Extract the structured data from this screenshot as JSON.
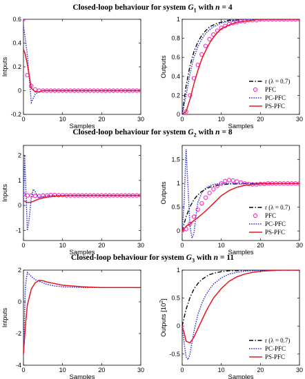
{
  "row_titles": [
    {
      "prefix": "Closed-loop behaviour for system ",
      "sys": "G",
      "sub": "1",
      "mid": " with ",
      "n": "n",
      "eq": " = 4"
    },
    {
      "prefix": "Closed-loop behaviour for system ",
      "sys": "G",
      "sub": "2",
      "mid": " with ",
      "n": "n",
      "eq": " = 8"
    },
    {
      "prefix": "Closed-loop behaviour for system ",
      "sys": "G",
      "sub": "3",
      "mid": " with ",
      "n": "n",
      "eq": " = 11"
    }
  ],
  "colors": {
    "r": "#000000",
    "PFC": "#ff33cc",
    "PC-PFC": "#2b2bd6",
    "PS-PFC": "#e8141e"
  },
  "chart_data": [
    {
      "type": "line",
      "id": "g1-inputs",
      "xlabel": "Samples",
      "ylabel": "Intputs",
      "xlim": [
        0,
        30
      ],
      "ylim": [
        -0.2,
        0.6
      ],
      "xticks": [
        0,
        10,
        20,
        30
      ],
      "yticks": [
        -0.2,
        0,
        0.2,
        0.4,
        0.6
      ],
      "series": [
        {
          "name": "PFC",
          "style": "markers",
          "x": [
            0,
            1,
            2,
            3,
            4,
            5,
            6,
            7,
            8,
            9,
            10,
            11,
            12,
            13,
            14,
            15,
            16,
            17,
            18,
            19,
            20,
            21,
            22,
            23,
            24,
            25,
            26,
            27,
            28,
            29,
            30
          ],
          "y": [
            0.6,
            0.13,
            0.04,
            0.01,
            0,
            0,
            0,
            0,
            0,
            0,
            0,
            0,
            0,
            0,
            0,
            0,
            0,
            0,
            0,
            0,
            0,
            0,
            0,
            0,
            0,
            0,
            0,
            0,
            0,
            0,
            0
          ]
        },
        {
          "name": "PC-PFC",
          "style": "dotted",
          "x": [
            0,
            1,
            2,
            3,
            4,
            5,
            6,
            8,
            10,
            15,
            20,
            25,
            30
          ],
          "y": [
            0.55,
            0.3,
            -0.1,
            -0.03,
            -0.01,
            0,
            0,
            0,
            0,
            0,
            0,
            0,
            0
          ]
        },
        {
          "name": "PS-PFC",
          "style": "solid",
          "x": [
            0,
            0.5,
            1,
            2,
            3,
            4,
            5,
            6,
            8,
            10,
            15,
            20,
            25,
            30
          ],
          "y": [
            0.35,
            0.3,
            0.22,
            0.02,
            -0.01,
            -0.01,
            0,
            0,
            0,
            0,
            0,
            0,
            0,
            0
          ]
        }
      ]
    },
    {
      "type": "line",
      "id": "g1-outputs",
      "xlabel": "Samples",
      "ylabel": "Outputs",
      "xlim": [
        0,
        30
      ],
      "ylim": [
        0,
        1
      ],
      "xticks": [
        0,
        10,
        20,
        30
      ],
      "yticks": [
        0,
        0.2,
        0.4,
        0.6,
        0.8,
        1
      ],
      "legend": "bottom-right",
      "series": [
        {
          "name": "r (λ = 0.7)",
          "style": "dashdot",
          "x": [
            0,
            1,
            2,
            3,
            4,
            5,
            6,
            7,
            8,
            9,
            10,
            12,
            14,
            16,
            18,
            20,
            25,
            30
          ],
          "y": [
            0,
            0.3,
            0.51,
            0.66,
            0.76,
            0.83,
            0.88,
            0.92,
            0.94,
            0.96,
            0.97,
            0.99,
            0.99,
            1,
            1,
            1,
            1,
            1
          ]
        },
        {
          "name": "PFC",
          "style": "markers",
          "x": [
            0,
            1,
            2,
            3,
            4,
            5,
            6,
            7,
            8,
            9,
            10,
            11,
            12,
            13,
            14,
            15,
            16,
            17,
            18,
            19,
            20,
            21,
            22,
            23,
            24,
            25,
            26,
            27,
            28,
            29,
            30
          ],
          "y": [
            0,
            0.03,
            0.2,
            0.38,
            0.52,
            0.63,
            0.72,
            0.79,
            0.84,
            0.88,
            0.91,
            0.93,
            0.95,
            0.96,
            0.97,
            0.98,
            0.98,
            0.99,
            0.99,
            0.99,
            1,
            1,
            1,
            1,
            1,
            1,
            1,
            1,
            1,
            1,
            1
          ]
        },
        {
          "name": "PC-PFC",
          "style": "dotted",
          "x": [
            0,
            1,
            2,
            3,
            4,
            5,
            6,
            7,
            8,
            9,
            10,
            12,
            14,
            16,
            18,
            20,
            25,
            30
          ],
          "y": [
            0,
            0.2,
            0.43,
            0.6,
            0.71,
            0.79,
            0.85,
            0.89,
            0.92,
            0.94,
            0.96,
            0.98,
            0.99,
            1,
            1,
            1,
            1,
            1
          ]
        },
        {
          "name": "PS-PFC",
          "style": "solid",
          "x": [
            0,
            1,
            2,
            3,
            4,
            5,
            6,
            7,
            8,
            9,
            10,
            12,
            14,
            16,
            18,
            20,
            25,
            30
          ],
          "y": [
            0,
            0.03,
            0.16,
            0.32,
            0.46,
            0.58,
            0.67,
            0.75,
            0.81,
            0.86,
            0.9,
            0.94,
            0.97,
            0.98,
            0.99,
            1,
            1,
            1
          ]
        }
      ]
    },
    {
      "type": "line",
      "id": "g2-inputs",
      "xlabel": "Samples",
      "ylabel": "Inputs",
      "xlim": [
        0,
        30
      ],
      "ylim": [
        -1.4,
        2.4
      ],
      "xticks": [
        0,
        10,
        20,
        30
      ],
      "yticks": [
        -1,
        0,
        1,
        2
      ],
      "series": [
        {
          "name": "PFC",
          "style": "markers",
          "x": [
            0,
            1,
            2,
            3,
            4,
            5,
            6,
            7,
            8,
            9,
            10,
            11,
            12,
            13,
            14,
            15,
            16,
            17,
            18,
            19,
            20,
            21,
            22,
            23,
            24,
            25,
            26,
            27,
            28,
            29,
            30
          ],
          "y": [
            0.45,
            0.4,
            0.4,
            0.38,
            0.38,
            0.4,
            0.4,
            0.42,
            0.42,
            0.41,
            0.41,
            0.4,
            0.4,
            0.4,
            0.4,
            0.4,
            0.4,
            0.4,
            0.4,
            0.4,
            0.4,
            0.4,
            0.4,
            0.4,
            0.4,
            0.4,
            0.4,
            0.4,
            0.4,
            0.4,
            0.4
          ]
        },
        {
          "name": "PC-PFC",
          "style": "dotted",
          "x": [
            0,
            0.3,
            1,
            1.5,
            2,
            2.5,
            3,
            3.5,
            4,
            5,
            6,
            7,
            8,
            10,
            12,
            15,
            20,
            25,
            30
          ],
          "y": [
            0,
            2.0,
            -1.0,
            -0.5,
            0.3,
            0.65,
            0.55,
            0.4,
            0.32,
            0.35,
            0.38,
            0.4,
            0.4,
            0.4,
            0.4,
            0.4,
            0.4,
            0.4,
            0.4
          ]
        },
        {
          "name": "PS-PFC",
          "style": "solid",
          "x": [
            0,
            0.5,
            1,
            2,
            3,
            4,
            5,
            6,
            7,
            8,
            10,
            12,
            15,
            20,
            25,
            30
          ],
          "y": [
            0.2,
            0.15,
            0.12,
            0.13,
            0.2,
            0.26,
            0.3,
            0.33,
            0.35,
            0.37,
            0.39,
            0.4,
            0.4,
            0.4,
            0.4,
            0.4
          ]
        }
      ]
    },
    {
      "type": "line",
      "id": "g2-outputs",
      "xlabel": "Samples",
      "ylabel": "Outputs",
      "xlim": [
        0,
        30
      ],
      "ylim": [
        -0.2,
        1.8
      ],
      "xticks": [
        0,
        10,
        20,
        30
      ],
      "yticks": [
        0,
        0.5,
        1,
        1.5
      ],
      "legend": "bottom-right",
      "series": [
        {
          "name": "r (λ = 0.7)",
          "style": "dashdot",
          "x": [
            0,
            1,
            2,
            3,
            4,
            5,
            6,
            7,
            8,
            9,
            10,
            12,
            14,
            16,
            18,
            20,
            25,
            30
          ],
          "y": [
            0,
            0.3,
            0.51,
            0.66,
            0.76,
            0.83,
            0.88,
            0.92,
            0.94,
            0.96,
            0.97,
            0.99,
            0.99,
            1,
            1,
            1,
            1,
            1
          ]
        },
        {
          "name": "PFC",
          "style": "markers",
          "x": [
            0,
            1,
            2,
            3,
            4,
            5,
            6,
            7,
            8,
            9,
            10,
            11,
            12,
            13,
            14,
            15,
            16,
            17,
            18,
            19,
            20,
            21,
            22,
            23,
            24,
            25,
            26,
            27,
            28,
            29,
            30
          ],
          "y": [
            0.01,
            0.04,
            0.15,
            0.3,
            0.45,
            0.58,
            0.7,
            0.8,
            0.88,
            0.95,
            1.0,
            1.05,
            1.07,
            1.06,
            1.04,
            1.02,
            1.0,
            0.99,
            0.98,
            0.98,
            0.99,
            0.99,
            1,
            1,
            1,
            1,
            1,
            1,
            1,
            1,
            1
          ]
        },
        {
          "name": "PC-PFC",
          "style": "dotted",
          "x": [
            0,
            0.5,
            1,
            1.5,
            2,
            2.5,
            3,
            3.5,
            4,
            5,
            6,
            7,
            8,
            10,
            12,
            15,
            20,
            25,
            30
          ],
          "y": [
            0,
            0.6,
            1.72,
            0.9,
            0.1,
            -0.15,
            -0.05,
            0.3,
            0.6,
            0.8,
            0.9,
            0.95,
            0.98,
            1,
            1,
            1,
            1,
            1,
            1
          ]
        },
        {
          "name": "PS-PFC",
          "style": "solid",
          "x": [
            0,
            1,
            2,
            3,
            4,
            5,
            6,
            7,
            8,
            9,
            10,
            12,
            14,
            16,
            18,
            20,
            25,
            30
          ],
          "y": [
            0,
            0.1,
            0.15,
            0.22,
            0.28,
            0.35,
            0.42,
            0.5,
            0.58,
            0.66,
            0.74,
            0.85,
            0.92,
            0.96,
            0.98,
            0.99,
            1,
            1
          ]
        }
      ]
    },
    {
      "type": "line",
      "id": "g3-inputs",
      "xlabel": "Samples",
      "ylabel": "Intputs",
      "xlim": [
        0,
        30
      ],
      "ylim": [
        -4,
        2
      ],
      "xticks": [
        0,
        10,
        20,
        30
      ],
      "yticks": [
        -4,
        -2,
        0,
        2
      ],
      "series": [
        {
          "name": "PC-PFC",
          "style": "dotted",
          "x": [
            0,
            0.5,
            1,
            2,
            3,
            4,
            5,
            6,
            8,
            10,
            15,
            20,
            25,
            30
          ],
          "y": [
            -3.3,
            1.0,
            1.85,
            1.6,
            1.4,
            1.3,
            1.2,
            1.1,
            1.0,
            0.95,
            0.9,
            0.9,
            0.9,
            0.9
          ]
        },
        {
          "name": "PS-PFC",
          "style": "solid",
          "x": [
            0,
            0.5,
            1,
            2,
            3,
            4,
            5,
            6,
            8,
            10,
            15,
            20,
            25,
            30
          ],
          "y": [
            -3.3,
            -1.5,
            -0.2,
            0.8,
            1.2,
            1.35,
            1.33,
            1.25,
            1.15,
            1.05,
            0.95,
            0.9,
            0.9,
            0.9
          ]
        }
      ]
    },
    {
      "type": "line",
      "id": "g3-outputs",
      "xlabel": "Samples",
      "ylabel": "Outputs [10",
      "ylabel_sup": "2",
      "ylabel_end": "]",
      "xlim": [
        0,
        30
      ],
      "ylim": [
        -0.7,
        1
      ],
      "xticks": [
        0,
        10,
        20,
        30
      ],
      "yticks": [
        -0.5,
        0,
        0.5,
        1
      ],
      "legend": "bottom-right",
      "series": [
        {
          "name": "r (λ = 0.7)",
          "style": "dashdot",
          "x": [
            0,
            1,
            2,
            3,
            4,
            5,
            6,
            7,
            8,
            9,
            10,
            12,
            14,
            16,
            18,
            20,
            25,
            30
          ],
          "y": [
            0,
            0.3,
            0.51,
            0.66,
            0.76,
            0.83,
            0.88,
            0.92,
            0.94,
            0.96,
            0.97,
            0.99,
            0.99,
            1,
            1,
            1,
            1,
            1
          ]
        },
        {
          "name": "PC-PFC",
          "style": "dotted",
          "x": [
            0,
            0.5,
            1,
            1.5,
            2,
            3,
            4,
            5,
            6,
            7,
            8,
            10,
            12,
            14,
            16,
            20,
            25,
            30
          ],
          "y": [
            0,
            -0.3,
            -0.55,
            -0.6,
            -0.5,
            -0.1,
            0.2,
            0.4,
            0.55,
            0.66,
            0.75,
            0.86,
            0.93,
            0.96,
            0.98,
            1,
            1,
            1
          ]
        },
        {
          "name": "PS-PFC",
          "style": "solid",
          "x": [
            0,
            0.5,
            1,
            2,
            3,
            4,
            5,
            6,
            7,
            8,
            10,
            12,
            14,
            16,
            18,
            20,
            25,
            30
          ],
          "y": [
            0,
            -0.12,
            -0.27,
            -0.3,
            -0.2,
            -0.05,
            0.1,
            0.25,
            0.38,
            0.5,
            0.67,
            0.8,
            0.88,
            0.93,
            0.96,
            0.98,
            1,
            1
          ]
        }
      ]
    }
  ]
}
